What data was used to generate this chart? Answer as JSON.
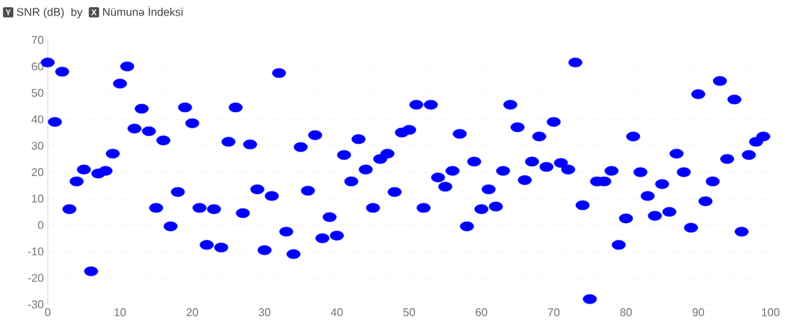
{
  "chart_data": {
    "type": "scatter",
    "xlabel": "Nümunə İndeksi",
    "ylabel": "SNR (dB)",
    "annotations": [
      "Y",
      "by",
      "X"
    ],
    "x": [
      0,
      1,
      2,
      3,
      4,
      5,
      6,
      7,
      8,
      9,
      10,
      11,
      12,
      13,
      14,
      15,
      16,
      17,
      18,
      19,
      20,
      21,
      22,
      23,
      24,
      25,
      26,
      27,
      28,
      29,
      30,
      31,
      32,
      33,
      34,
      35,
      36,
      37,
      38,
      39,
      40,
      41,
      42,
      43,
      44,
      45,
      46,
      47,
      48,
      49,
      50,
      51,
      52,
      53,
      54,
      55,
      56,
      57,
      58,
      59,
      60,
      61,
      62,
      63,
      64,
      65,
      66,
      67,
      68,
      69,
      70,
      71,
      72,
      73,
      74,
      75,
      76,
      77,
      78,
      79,
      80,
      81,
      82,
      83,
      84,
      85,
      86,
      87,
      88,
      89,
      90,
      91,
      92,
      93,
      94,
      95,
      96,
      97,
      98,
      99
    ],
    "series": [
      {
        "color": "#0000ff",
        "values": [
          61.5,
          39,
          58,
          6,
          16.5,
          21,
          -17.5,
          19.5,
          20.5,
          27,
          53.5,
          60,
          36.5,
          44,
          35.5,
          6.5,
          32,
          -0.5,
          12.5,
          44.5,
          38.5,
          6.5,
          -7.5,
          6,
          -8.5,
          31.5,
          44.5,
          4.5,
          30.5,
          13.5,
          -9.5,
          11,
          57.5,
          -2.5,
          -11,
          29.5,
          13,
          34,
          -5,
          3,
          -4,
          26.5,
          16.5,
          32.5,
          21,
          6.5,
          25,
          27,
          12.5,
          35,
          36,
          45.5,
          6.5,
          45.5,
          18,
          14.5,
          20.5,
          34.5,
          -0.5,
          24,
          6,
          13.5,
          7,
          20.5,
          45.5,
          37,
          17,
          24,
          33.5,
          22,
          39,
          23.5,
          21,
          61.5,
          7.5,
          -28,
          16.5,
          16.5,
          20.5,
          -7.5,
          2.5,
          33.5,
          20,
          11,
          3.5,
          15.5,
          5,
          27,
          20,
          -1,
          49.5,
          9,
          16.5,
          54.5,
          25,
          47.5,
          -2.5,
          26.5,
          31.5,
          33.5
        ]
      }
    ],
    "xlim": [
      0,
      100
    ],
    "ylim": [
      -30,
      70
    ],
    "xticks": [
      0,
      10,
      20,
      30,
      40,
      50,
      60,
      70,
      80,
      90,
      100
    ],
    "yticks": [
      -30,
      -20,
      -10,
      0,
      10,
      20,
      30,
      40,
      50,
      60,
      70
    ],
    "grid": "y",
    "marker": "circle"
  }
}
